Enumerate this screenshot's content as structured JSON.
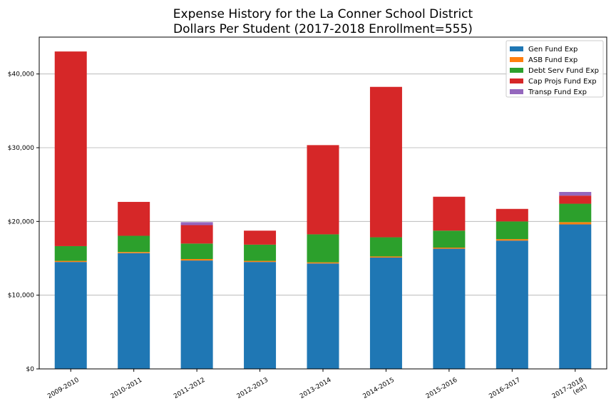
{
  "chart_data": {
    "type": "bar",
    "stacked": true,
    "title": [
      "Expense History for the La Conner School District",
      "Dollars Per Student (2017-2018 Enrollment=555)"
    ],
    "xlabel": "",
    "ylabel": "",
    "categories": [
      [
        "2009-2010"
      ],
      [
        "2010-2011"
      ],
      [
        "2011-2012"
      ],
      [
        "2012-2013"
      ],
      [
        "2013-2014"
      ],
      [
        "2014-2015"
      ],
      [
        "2015-2016"
      ],
      [
        "2016-2017"
      ],
      [
        "2017-2018",
        "(est)"
      ]
    ],
    "ylim": [
      0,
      45000
    ],
    "yticks": [
      0,
      10000,
      20000,
      30000,
      40000
    ],
    "ytick_labels": [
      "$0",
      "$10,000",
      "$20,000",
      "$30,000",
      "$40,000"
    ],
    "grid": "y",
    "legend_position": "top-right",
    "series": [
      {
        "name": "Gen Fund Exp",
        "color": "#1f77b4",
        "values": [
          14500,
          15700,
          14700,
          14500,
          14300,
          15100,
          16300,
          17400,
          19600
        ]
      },
      {
        "name": "ASB Fund Exp",
        "color": "#ff7f0e",
        "values": [
          150,
          150,
          200,
          150,
          150,
          150,
          150,
          200,
          300
        ]
      },
      {
        "name": "Debt Serv Fund Exp",
        "color": "#2ca02c",
        "values": [
          2000,
          2200,
          2100,
          2200,
          3800,
          2600,
          2300,
          2400,
          2500
        ]
      },
      {
        "name": "Cap Projs Fund Exp",
        "color": "#d62728",
        "values": [
          26400,
          4600,
          2500,
          1900,
          12100,
          20400,
          4600,
          1700,
          1100
        ]
      },
      {
        "name": "Transp Fund Exp",
        "color": "#9467bd",
        "values": [
          0,
          0,
          400,
          0,
          0,
          0,
          0,
          0,
          500
        ]
      }
    ]
  }
}
